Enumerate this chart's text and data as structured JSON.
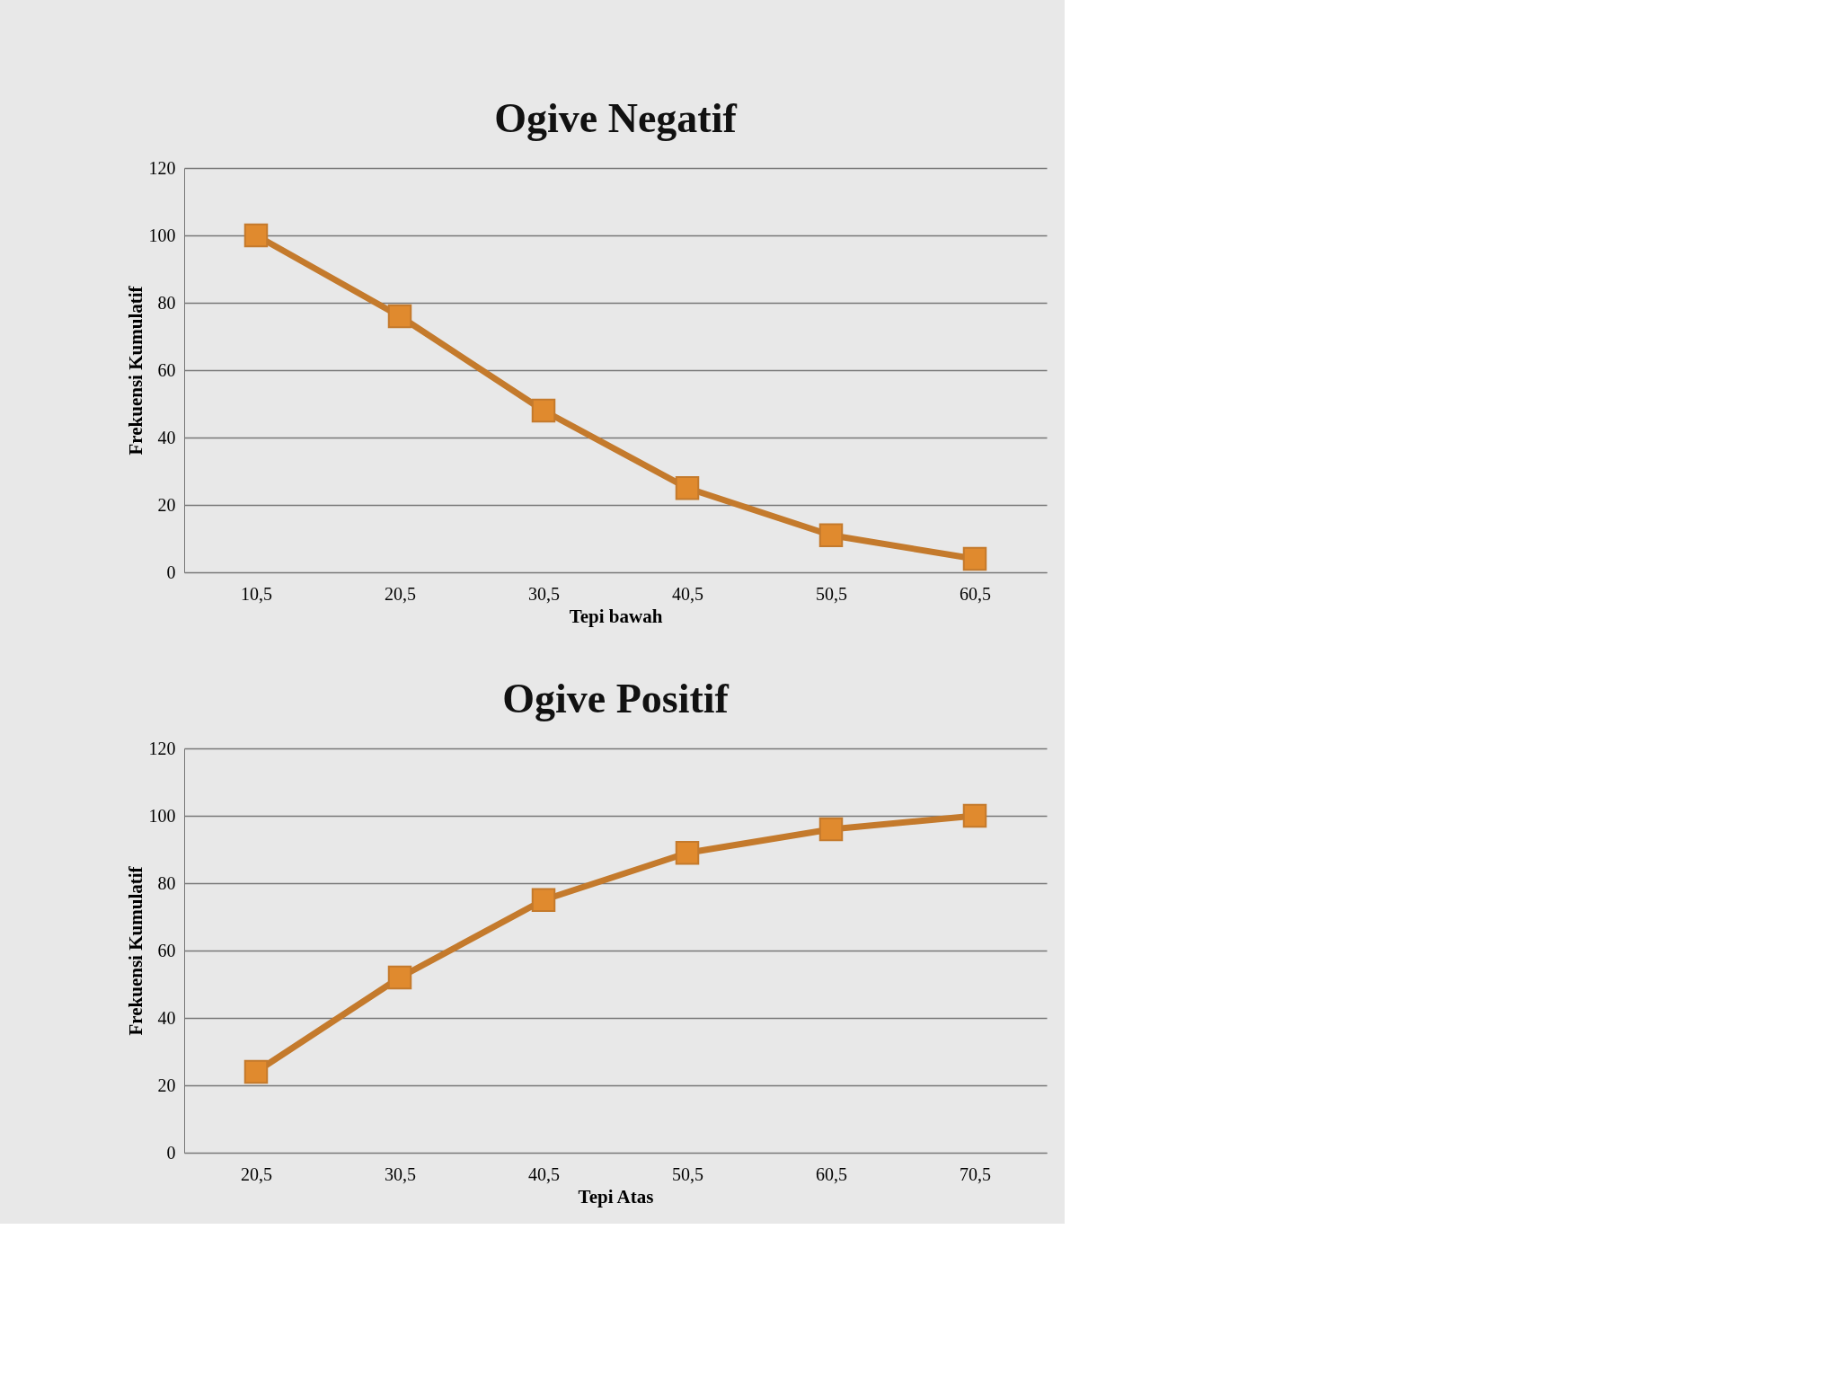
{
  "chart_data": [
    {
      "type": "line",
      "title": "Ogive Negatif",
      "xlabel": "Tepi bawah",
      "ylabel": "Frekuensi Kumulatif",
      "categories": [
        "10,5",
        "20,5",
        "30,5",
        "40,5",
        "50,5",
        "60,5"
      ],
      "series": [
        {
          "color": "#c47a2c",
          "values": [
            100,
            76,
            48,
            25,
            11,
            4
          ]
        }
      ],
      "ylim": [
        0,
        120
      ],
      "yticks": [
        0,
        20,
        40,
        60,
        80,
        100,
        120
      ],
      "grid": "y",
      "marker": "square"
    },
    {
      "type": "line",
      "title": "Ogive Positif",
      "xlabel": "Tepi Atas",
      "ylabel": "Frekuensi Kumulatif",
      "categories": [
        "20,5",
        "30,5",
        "40,5",
        "50,5",
        "60,5",
        "70,5"
      ],
      "series": [
        {
          "color": "#c47a2c",
          "values": [
            24,
            52,
            75,
            89,
            96,
            100
          ]
        }
      ],
      "ylim": [
        0,
        120
      ],
      "yticks": [
        0,
        20,
        40,
        60,
        80,
        100,
        120
      ],
      "grid": "y",
      "marker": "square"
    }
  ]
}
